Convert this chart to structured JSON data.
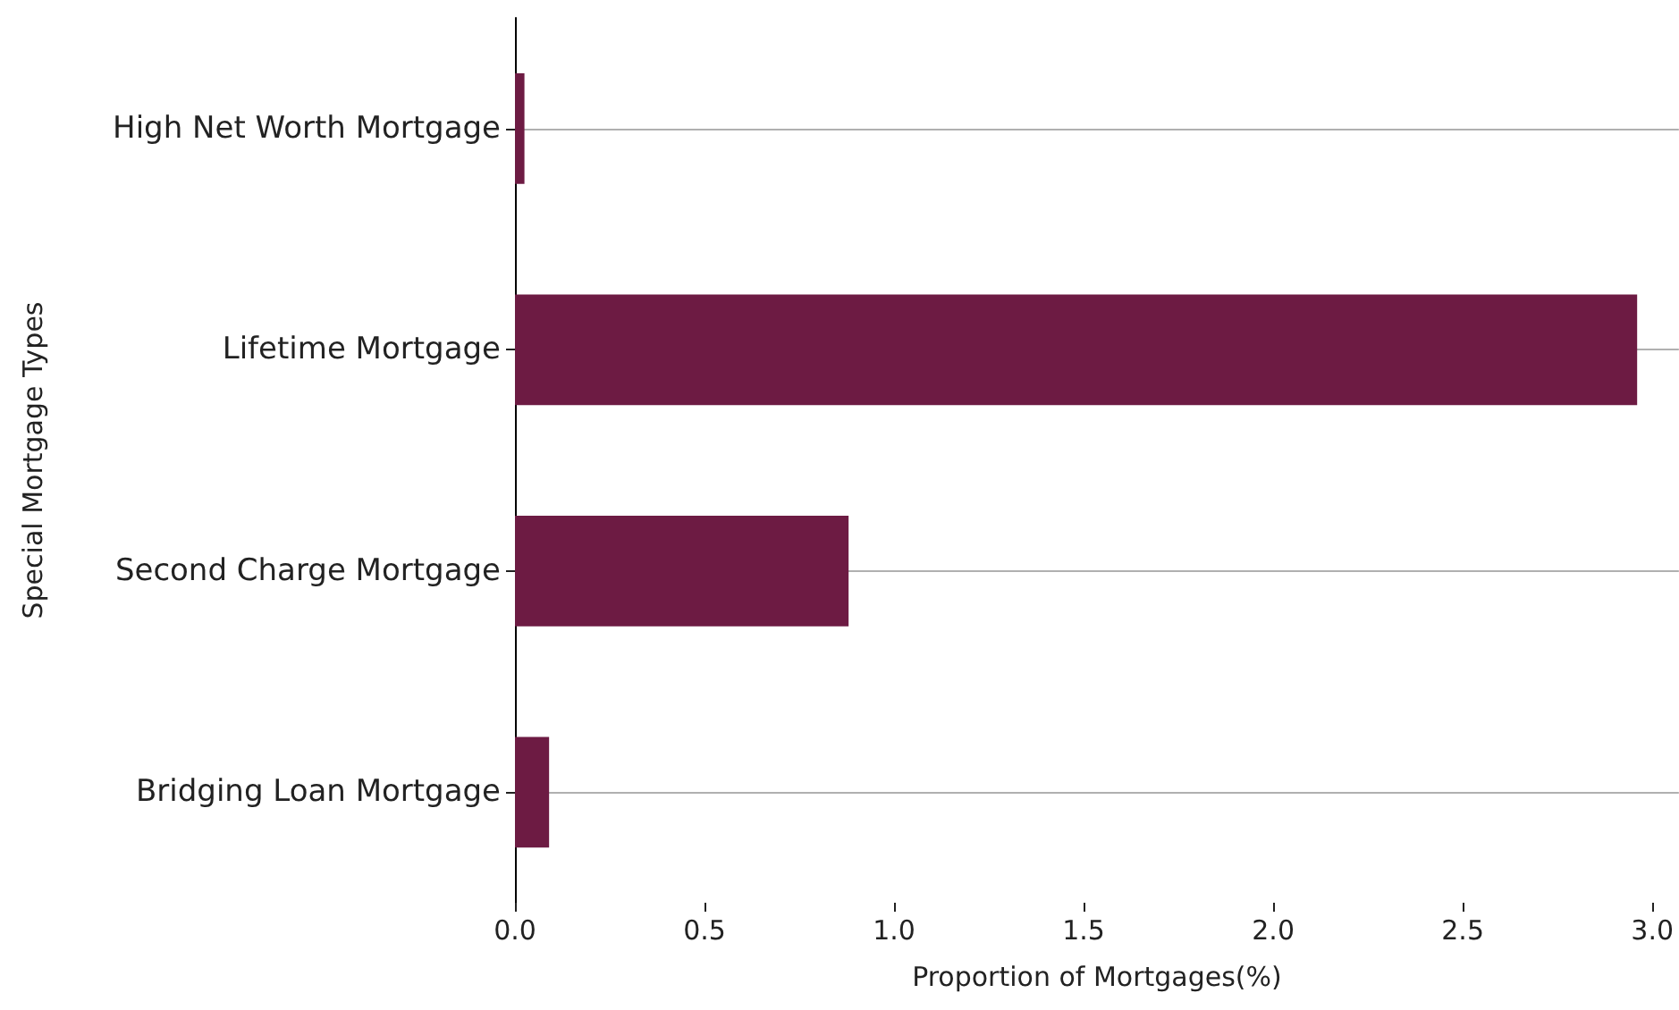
{
  "chart_data": {
    "type": "bar",
    "orientation": "horizontal",
    "xlabel": "Proportion of Mortgages(%)",
    "ylabel": "Special Mortgage Types",
    "categories": [
      "High Net Worth Mortgage",
      "Lifetime Mortgage",
      "Second Charge Mortgage",
      "Bridging Loan Mortgage"
    ],
    "values": [
      0.025,
      2.96,
      0.88,
      0.09
    ],
    "color": "#6d1b43",
    "xlim": [
      0,
      3.07
    ],
    "xticks": [
      {
        "value": 0,
        "label": "0.0"
      },
      {
        "value": 0.5,
        "label": "0.5"
      },
      {
        "value": 1,
        "label": "1.0"
      },
      {
        "value": 1.5,
        "label": "1.5"
      },
      {
        "value": 2,
        "label": "2.0"
      },
      {
        "value": 2.5,
        "label": "2.5"
      },
      {
        "value": 3,
        "label": "3.0"
      }
    ],
    "grid": "y"
  }
}
